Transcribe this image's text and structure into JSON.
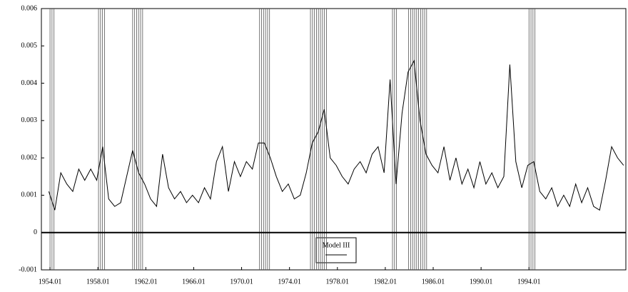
{
  "chart_data": {
    "type": "line",
    "x": [
      1953.9,
      1954.4,
      1954.9,
      1955.4,
      1955.9,
      1956.4,
      1956.9,
      1957.4,
      1957.9,
      1958.4,
      1958.9,
      1959.4,
      1959.9,
      1960.4,
      1960.9,
      1961.4,
      1961.9,
      1962.4,
      1962.9,
      1963.4,
      1963.9,
      1964.4,
      1964.9,
      1965.4,
      1965.9,
      1966.4,
      1966.9,
      1967.4,
      1967.9,
      1968.4,
      1968.9,
      1969.4,
      1969.9,
      1970.4,
      1970.9,
      1971.4,
      1971.9,
      1972.4,
      1972.9,
      1973.4,
      1973.9,
      1974.4,
      1974.9,
      1975.4,
      1975.9,
      1976.4,
      1976.9,
      1977.4,
      1977.9,
      1978.4,
      1978.9,
      1979.4,
      1979.9,
      1980.4,
      1980.9,
      1981.4,
      1981.9,
      1982.4,
      1982.9,
      1983.4,
      1983.9,
      1984.4,
      1984.9,
      1985.4,
      1985.9,
      1986.4,
      1986.9,
      1987.4,
      1987.9,
      1988.4,
      1988.9,
      1989.4,
      1989.9,
      1990.4,
      1990.9,
      1991.4,
      1991.9,
      1992.4,
      1992.9,
      1993.4,
      1993.9,
      1994.4,
      1994.9,
      1995.4,
      1995.9,
      1996.4,
      1996.9,
      1997.4,
      1997.9,
      1998.4,
      1998.9,
      1999.4,
      1999.9,
      2000.4,
      2000.9,
      2001.4,
      2001.9
    ],
    "series": [
      {
        "name": "Model III",
        "color": "#000000",
        "values": [
          0.0011,
          0.0006,
          0.0016,
          0.0013,
          0.0011,
          0.0017,
          0.0014,
          0.0017,
          0.0014,
          0.0023,
          0.0009,
          0.0007,
          0.0008,
          0.0015,
          0.0022,
          0.0016,
          0.0013,
          0.0009,
          0.0007,
          0.0021,
          0.0012,
          0.0009,
          0.0011,
          0.0008,
          0.001,
          0.0008,
          0.0012,
          0.0009,
          0.0019,
          0.0023,
          0.0011,
          0.0019,
          0.0015,
          0.0019,
          0.0017,
          0.0024,
          0.0024,
          0.002,
          0.0015,
          0.0011,
          0.0013,
          0.0009,
          0.001,
          0.0016,
          0.0024,
          0.0027,
          0.0033,
          0.002,
          0.0018,
          0.0015,
          0.0013,
          0.0017,
          0.0019,
          0.0016,
          0.0021,
          0.0023,
          0.0016,
          0.0041,
          0.0013,
          0.0032,
          0.0043,
          0.0046,
          0.003,
          0.0021,
          0.0018,
          0.0016,
          0.0023,
          0.0014,
          0.002,
          0.0013,
          0.0017,
          0.0012,
          0.0019,
          0.0013,
          0.0016,
          0.0012,
          0.0015,
          0.0045,
          0.0019,
          0.0012,
          0.0018,
          0.0019,
          0.0011,
          0.0009,
          0.0012,
          0.0007,
          0.001,
          0.0007,
          0.0013,
          0.0008,
          0.0012,
          0.0007,
          0.0006,
          0.0014,
          0.0023,
          0.002,
          0.0018
        ]
      }
    ],
    "bands": [
      [
        1954.0,
        1954.35
      ],
      [
        1958.05,
        1958.65
      ],
      [
        1960.9,
        1961.75
      ],
      [
        1971.5,
        1972.35
      ],
      [
        1975.75,
        1977.1
      ],
      [
        1982.6,
        1983.0
      ],
      [
        1983.95,
        1985.55
      ],
      [
        1994.0,
        1994.65
      ]
    ],
    "xlim": [
      1953.28,
      2002.09
    ],
    "xticks": [
      {
        "value": 1954.0,
        "label": "1954.01"
      },
      {
        "value": 1958.0,
        "label": "1958.01"
      },
      {
        "value": 1962.0,
        "label": "1962.01"
      },
      {
        "value": 1966.0,
        "label": "1966.01"
      },
      {
        "value": 1970.0,
        "label": "1970.01"
      },
      {
        "value": 1974.0,
        "label": "1974.01"
      },
      {
        "value": 1978.0,
        "label": "1978.01"
      },
      {
        "value": 1982.0,
        "label": "1982.01"
      },
      {
        "value": 1986.0,
        "label": "1986.01"
      },
      {
        "value": 1990.0,
        "label": "1990.01"
      },
      {
        "value": 1994.0,
        "label": "1994.01"
      }
    ],
    "ylim": [
      -0.001,
      0.006
    ],
    "yticks": [
      -0.001,
      0,
      0.001,
      0.002,
      0.003,
      0.004,
      0.005,
      0.006
    ]
  }
}
